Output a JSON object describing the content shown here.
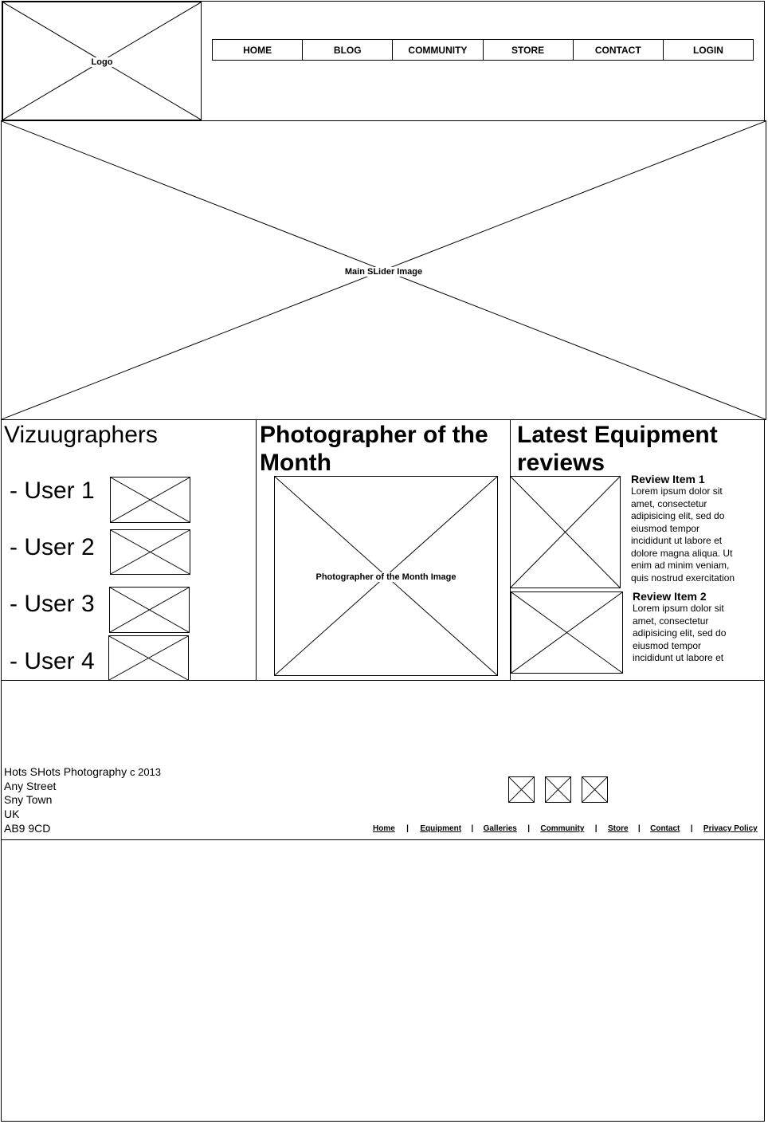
{
  "header": {
    "logo_label": "Logo",
    "nav": [
      "HOME",
      "BLOG",
      "COMMUNITY",
      "STORE",
      "CONTACT",
      "LOGIN"
    ]
  },
  "slider": {
    "label": "Main SLider Image"
  },
  "vizuugraphers": {
    "title": "Vizuugraphers",
    "users": [
      "- User 1",
      "- User 2",
      "- User 3",
      "- User 4"
    ]
  },
  "photographer": {
    "title_line1": "Photographer of the",
    "title_line2": "Month",
    "image_label": "Photographer of the Month Image"
  },
  "reviews": {
    "title_line1": "Latest Equipment",
    "title_line2": "reviews",
    "items": [
      {
        "title": "Review Item 1",
        "lines": [
          "Lorem ipsum dolor sit",
          "amet, consectetur",
          "adipisicing elit, sed do",
          "eiusmod tempor",
          "incididunt ut labore et",
          "dolore magna aliqua. Ut",
          "enim ad minim veniam,",
          "quis nostrud exercitation"
        ]
      },
      {
        "title": "Review Item 2",
        "lines": [
          "Lorem ipsum dolor sit",
          "amet, consectetur",
          "adipisicing elit, sed do",
          "eiusmod tempor",
          "incididunt ut labore et"
        ]
      }
    ]
  },
  "footer": {
    "company": "Hots SHots Photography",
    "copyright": "c 2013",
    "address": [
      "Any Street",
      "Sny Town",
      "UK",
      "AB9 9CD"
    ],
    "links": [
      "Home",
      "Equipment",
      "Galleries",
      "Community",
      "Store",
      "Contact",
      "Privacy Policy"
    ],
    "separator": "|"
  }
}
